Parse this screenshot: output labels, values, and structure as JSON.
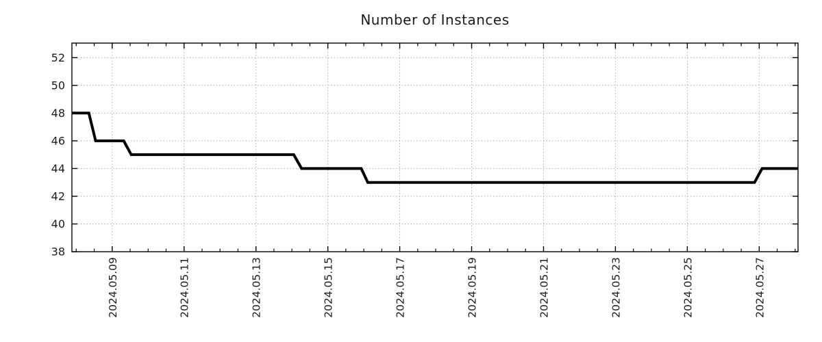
{
  "title": "Number of Instances",
  "colors": {
    "background": "#ffffff",
    "axis": "#000000",
    "grid": "#a9a9a9",
    "line": "#000000",
    "text": "#1c1c1c"
  },
  "chart_data": {
    "type": "line",
    "title": "Number of Instances",
    "legend": "none",
    "grid": {
      "show": true,
      "style": "dotted"
    },
    "x_axis": {
      "label": "",
      "unit": "date",
      "epoch": "2024-05-07 00:00",
      "range_days": [
        0.88,
        21.08
      ],
      "major_ticks": [
        {
          "t": 2,
          "label": "2024.05.09"
        },
        {
          "t": 4,
          "label": "2024.05.11"
        },
        {
          "t": 6,
          "label": "2024.05.13"
        },
        {
          "t": 8,
          "label": "2024.05.15"
        },
        {
          "t": 10,
          "label": "2024.05.17"
        },
        {
          "t": 12,
          "label": "2024.05.19"
        },
        {
          "t": 14,
          "label": "2024.05.21"
        },
        {
          "t": 16,
          "label": "2024.05.23"
        },
        {
          "t": 18,
          "label": "2024.05.25"
        },
        {
          "t": 20,
          "label": "2024.05.27"
        }
      ],
      "minor_tick_step_days": 0.5,
      "tick_label_rotation_deg": -90
    },
    "y_axis": {
      "label": "",
      "range": [
        38,
        53.05
      ],
      "major_ticks": [
        52,
        50,
        48,
        46,
        44,
        42,
        40,
        38
      ]
    },
    "series": [
      {
        "name": "instances",
        "color": "#000000",
        "stroke_width": 4,
        "points": [
          {
            "t": 0.88,
            "date": "2024-05-07 21:00",
            "v": 48
          },
          {
            "t": 1.35,
            "date": "2024-05-08 08:25",
            "v": 48
          },
          {
            "t": 1.54,
            "date": "2024-05-08 13:00",
            "v": 46
          },
          {
            "t": 2.32,
            "date": "2024-05-09 07:40",
            "v": 46
          },
          {
            "t": 2.53,
            "date": "2024-05-09 12:45",
            "v": 45
          },
          {
            "t": 7.05,
            "date": "2024-05-14 01:10",
            "v": 45
          },
          {
            "t": 7.27,
            "date": "2024-05-14 06:30",
            "v": 44
          },
          {
            "t": 8.93,
            "date": "2024-05-15 22:20",
            "v": 44
          },
          {
            "t": 9.11,
            "date": "2024-05-16 02:40",
            "v": 43
          },
          {
            "t": 19.87,
            "date": "2024-05-26 20:55",
            "v": 43
          },
          {
            "t": 20.08,
            "date": "2024-05-27 01:55",
            "v": 44
          },
          {
            "t": 21.08,
            "date": "2024-05-28 01:55",
            "v": 44
          }
        ]
      }
    ]
  }
}
